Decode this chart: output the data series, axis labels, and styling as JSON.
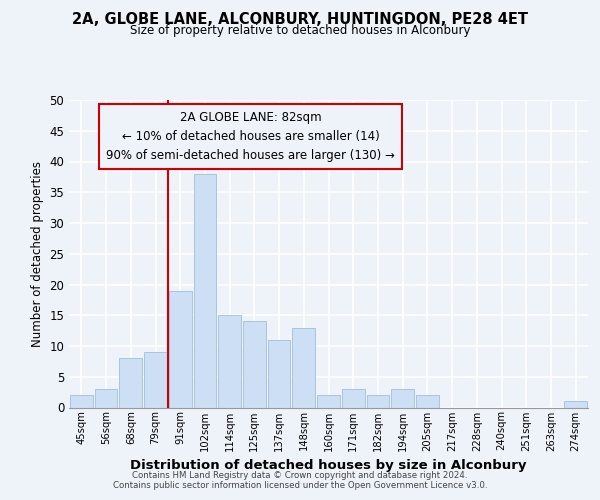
{
  "title": "2A, GLOBE LANE, ALCONBURY, HUNTINGDON, PE28 4ET",
  "subtitle": "Size of property relative to detached houses in Alconbury",
  "xlabel": "Distribution of detached houses by size in Alconbury",
  "ylabel": "Number of detached properties",
  "bar_labels": [
    "45sqm",
    "56sqm",
    "68sqm",
    "79sqm",
    "91sqm",
    "102sqm",
    "114sqm",
    "125sqm",
    "137sqm",
    "148sqm",
    "160sqm",
    "171sqm",
    "182sqm",
    "194sqm",
    "205sqm",
    "217sqm",
    "228sqm",
    "240sqm",
    "251sqm",
    "263sqm",
    "274sqm"
  ],
  "bar_values": [
    2,
    3,
    8,
    9,
    19,
    38,
    15,
    14,
    11,
    13,
    2,
    3,
    2,
    3,
    2,
    0,
    0,
    0,
    0,
    0,
    1
  ],
  "bar_color": "#ccdff5",
  "bar_edge_color": "#a8c4e0",
  "vline_x": 3.5,
  "vline_color": "#cc0000",
  "annotation_title": "2A GLOBE LANE: 82sqm",
  "annotation_line1": "← 10% of detached houses are smaller (14)",
  "annotation_line2": "90% of semi-detached houses are larger (130) →",
  "annotation_box_edge": "#cc0000",
  "ylim": [
    0,
    50
  ],
  "yticks": [
    0,
    5,
    10,
    15,
    20,
    25,
    30,
    35,
    40,
    45,
    50
  ],
  "footer_line1": "Contains HM Land Registry data © Crown copyright and database right 2024.",
  "footer_line2": "Contains public sector information licensed under the Open Government Licence v3.0.",
  "background_color": "#eef2f9"
}
